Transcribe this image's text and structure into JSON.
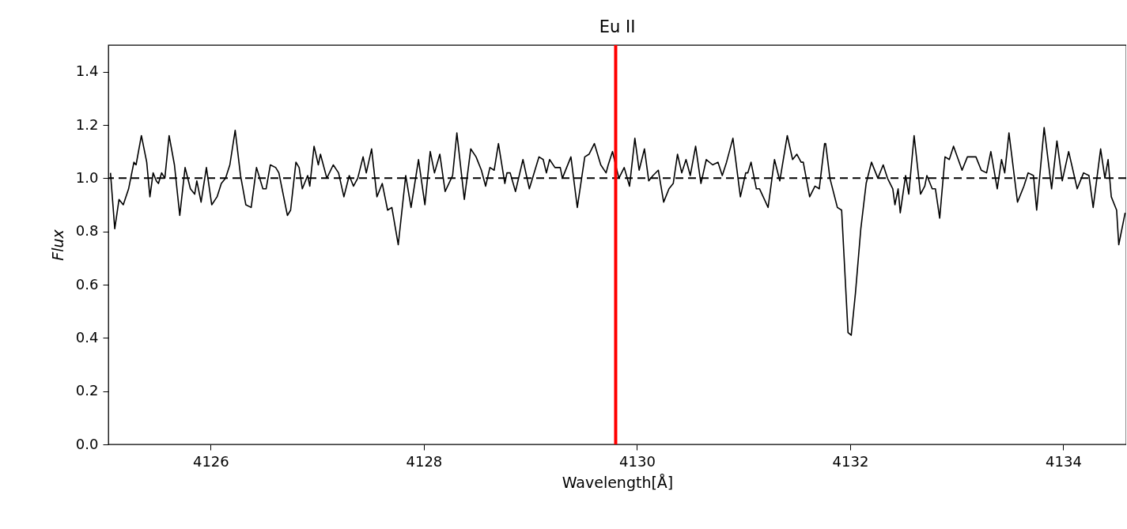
{
  "chart_data": {
    "type": "line",
    "title": "Eu II",
    "xlabel": "Wavelength[Å]",
    "ylabel": "Flux",
    "xlim": [
      4125.04,
      4134.59
    ],
    "ylim": [
      0,
      1.5
    ],
    "xticks": [
      4126,
      4128,
      4130,
      4132,
      4134
    ],
    "yticks": [
      {
        "value": 0,
        "label": "0.0"
      },
      0.2,
      0.4,
      0.6,
      0.8,
      {
        "value": 1,
        "label": "1.0"
      },
      1.2,
      1.4
    ],
    "grid": false,
    "ref_lines": [
      {
        "axis": "y",
        "value": 1.0,
        "color": "#000000",
        "line_style": "dashed"
      },
      {
        "axis": "x",
        "value": 4129.8,
        "color": "#ff0000",
        "line_style": "solid"
      }
    ],
    "series": [
      {
        "color": "#000000",
        "x": [
          4125.06,
          4125.1,
          4125.14,
          4125.18,
          4125.23,
          4125.28,
          4125.3,
          4125.35,
          4125.4,
          4125.43,
          4125.46,
          4125.49,
          4125.51,
          4125.54,
          4125.57,
          4125.61,
          4125.66,
          4125.71,
          4125.76,
          4125.81,
          4125.85,
          4125.87,
          4125.91,
          4125.96,
          4126.01,
          4126.06,
          4126.1,
          4126.14,
          4126.18,
          4126.23,
          4126.28,
          4126.33,
          4126.38,
          4126.43,
          4126.49,
          4126.52,
          4126.56,
          4126.61,
          4126.64,
          4126.72,
          4126.75,
          4126.8,
          4126.83,
          4126.86,
          4126.91,
          4126.93,
          4126.97,
          4127.01,
          4127.03,
          4127.09,
          4127.15,
          4127.2,
          4127.25,
          4127.3,
          4127.34,
          4127.38,
          4127.43,
          4127.46,
          4127.51,
          4127.56,
          4127.61,
          4127.66,
          4127.7,
          4127.76,
          4127.83,
          4127.88,
          4127.95,
          4128.01,
          4128.06,
          4128.1,
          4128.15,
          4128.2,
          4128.27,
          4128.31,
          4128.38,
          4128.44,
          4128.49,
          4128.54,
          4128.58,
          4128.62,
          4128.66,
          4128.7,
          4128.76,
          4128.78,
          4128.81,
          4128.86,
          4128.93,
          4128.99,
          4129.08,
          4129.12,
          4129.15,
          4129.18,
          4129.23,
          4129.28,
          4129.3,
          4129.38,
          4129.44,
          4129.51,
          4129.55,
          4129.6,
          4129.66,
          4129.71,
          4129.73,
          4129.77,
          4129.83,
          4129.88,
          4129.93,
          4129.98,
          4130.02,
          4130.07,
          4130.11,
          4130.15,
          4130.2,
          4130.25,
          4130.3,
          4130.34,
          4130.38,
          4130.42,
          4130.46,
          4130.5,
          4130.55,
          4130.6,
          4130.65,
          4130.71,
          4130.76,
          4130.8,
          4130.84,
          4130.9,
          4130.97,
          4131.02,
          4131.04,
          4131.07,
          4131.12,
          4131.15,
          4131.23,
          4131.29,
          4131.34,
          4131.41,
          4131.46,
          4131.5,
          4131.54,
          4131.56,
          4131.62,
          4131.67,
          4131.71,
          4131.76,
          4131.77,
          4131.81,
          4131.88,
          4131.92,
          4131.98,
          4132.01,
          4132.05,
          4132.1,
          4132.15,
          4132.2,
          4132.26,
          4132.31,
          4132.35,
          4132.4,
          4132.42,
          4132.45,
          4132.47,
          4132.52,
          4132.55,
          4132.6,
          4132.66,
          4132.7,
          4132.72,
          4132.77,
          4132.8,
          4132.84,
          4132.89,
          4132.93,
          4132.97,
          4133.05,
          4133.1,
          4133.18,
          4133.23,
          4133.28,
          4133.32,
          4133.38,
          4133.42,
          4133.45,
          4133.49,
          4133.57,
          4133.63,
          4133.67,
          4133.72,
          4133.75,
          4133.82,
          4133.89,
          4133.94,
          4133.99,
          4134.05,
          4134.13,
          4134.19,
          4134.24,
          4134.28,
          4134.35,
          4134.39,
          4134.42,
          4134.45,
          4134.5,
          4134.52,
          4134.58
        ],
        "values": [
          1.02,
          0.81,
          0.92,
          0.9,
          0.96,
          1.06,
          1.05,
          1.16,
          1.06,
          0.93,
          1.02,
          0.99,
          0.98,
          1.02,
          1.0,
          1.16,
          1.05,
          0.86,
          1.04,
          0.96,
          0.94,
          0.99,
          0.91,
          1.04,
          0.9,
          0.93,
          0.98,
          1.0,
          1.05,
          1.18,
          1.01,
          0.9,
          0.89,
          1.04,
          0.96,
          0.96,
          1.05,
          1.04,
          1.02,
          0.86,
          0.88,
          1.06,
          1.04,
          0.96,
          1.01,
          0.97,
          1.12,
          1.05,
          1.09,
          1.0,
          1.05,
          1.02,
          0.93,
          1.01,
          0.97,
          1.0,
          1.08,
          1.02,
          1.11,
          0.93,
          0.98,
          0.88,
          0.89,
          0.75,
          1.01,
          0.89,
          1.07,
          0.9,
          1.1,
          1.02,
          1.09,
          0.95,
          1.01,
          1.17,
          0.92,
          1.11,
          1.08,
          1.03,
          0.97,
          1.04,
          1.03,
          1.13,
          0.98,
          1.02,
          1.02,
          0.95,
          1.07,
          0.96,
          1.08,
          1.07,
          1.02,
          1.07,
          1.04,
          1.04,
          1.0,
          1.08,
          0.89,
          1.08,
          1.09,
          1.13,
          1.05,
          1.02,
          1.05,
          1.1,
          1.0,
          1.04,
          0.97,
          1.15,
          1.03,
          1.11,
          0.99,
          1.01,
          1.03,
          0.91,
          0.96,
          0.98,
          1.09,
          1.02,
          1.07,
          1.01,
          1.12,
          0.98,
          1.07,
          1.05,
          1.06,
          1.01,
          1.06,
          1.15,
          0.93,
          1.02,
          1.02,
          1.06,
          0.96,
          0.96,
          0.89,
          1.07,
          0.99,
          1.16,
          1.07,
          1.09,
          1.06,
          1.06,
          0.93,
          0.97,
          0.96,
          1.13,
          1.13,
          1.0,
          0.89,
          0.88,
          0.42,
          0.41,
          0.57,
          0.81,
          0.98,
          1.06,
          1.0,
          1.05,
          1.0,
          0.96,
          0.9,
          0.96,
          0.87,
          1.01,
          0.94,
          1.16,
          0.94,
          0.97,
          1.01,
          0.96,
          0.96,
          0.85,
          1.08,
          1.07,
          1.12,
          1.03,
          1.08,
          1.08,
          1.03,
          1.02,
          1.1,
          0.96,
          1.07,
          1.02,
          1.17,
          0.91,
          0.97,
          1.02,
          1.01,
          0.88,
          1.19,
          0.96,
          1.14,
          0.99,
          1.1,
          0.96,
          1.02,
          1.01,
          0.89,
          1.11,
          1.0,
          1.07,
          0.93,
          0.88,
          0.75,
          0.87
        ]
      }
    ]
  }
}
